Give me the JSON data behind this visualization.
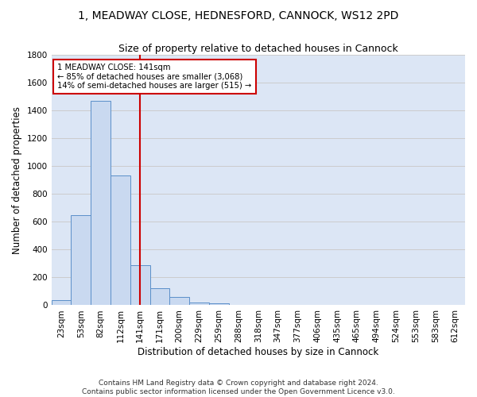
{
  "title_line1": "1, MEADWAY CLOSE, HEDNESFORD, CANNOCK, WS12 2PD",
  "title_line2": "Size of property relative to detached houses in Cannock",
  "xlabel": "Distribution of detached houses by size in Cannock",
  "ylabel": "Number of detached properties",
  "bin_labels": [
    "23sqm",
    "53sqm",
    "82sqm",
    "112sqm",
    "141sqm",
    "171sqm",
    "200sqm",
    "229sqm",
    "259sqm",
    "288sqm",
    "318sqm",
    "347sqm",
    "377sqm",
    "406sqm",
    "435sqm",
    "465sqm",
    "494sqm",
    "524sqm",
    "553sqm",
    "583sqm",
    "612sqm"
  ],
  "bar_heights": [
    38,
    650,
    1470,
    935,
    290,
    125,
    62,
    22,
    12,
    5,
    5,
    0,
    0,
    0,
    0,
    0,
    0,
    0,
    0,
    0,
    0
  ],
  "bar_color": "#c9d9f0",
  "bar_edge_color": "#5b8fc9",
  "vline_x_idx": 4,
  "vline_color": "#cc0000",
  "annotation_text_line1": "1 MEADWAY CLOSE: 141sqm",
  "annotation_text_line2": "← 85% of detached houses are smaller (3,068)",
  "annotation_text_line3": "14% of semi-detached houses are larger (515) →",
  "annotation_box_color": "#ffffff",
  "annotation_box_edge": "#cc0000",
  "ylim": [
    0,
    1800
  ],
  "yticks": [
    0,
    200,
    400,
    600,
    800,
    1000,
    1200,
    1400,
    1600,
    1800
  ],
  "grid_color": "#cccccc",
  "bg_color": "#dce6f5",
  "footer": "Contains HM Land Registry data © Crown copyright and database right 2024.\nContains public sector information licensed under the Open Government Licence v3.0.",
  "title_fontsize": 10,
  "subtitle_fontsize": 9,
  "axis_label_fontsize": 8.5,
  "tick_fontsize": 7.5,
  "footer_fontsize": 6.5
}
